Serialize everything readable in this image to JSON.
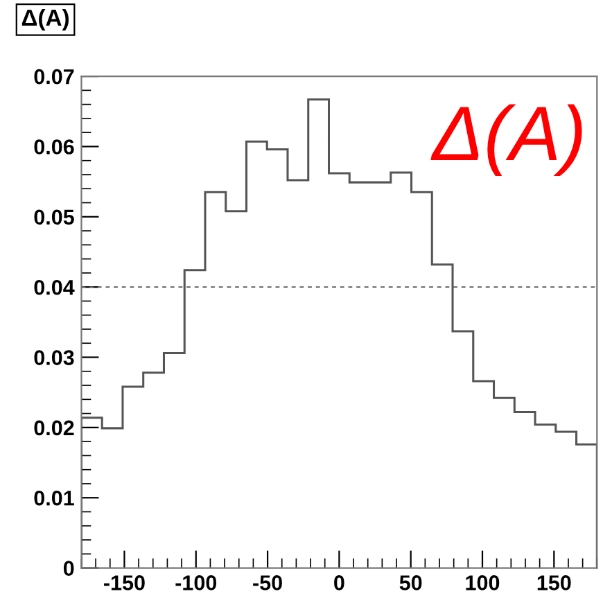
{
  "chart_data": {
    "type": "histogram",
    "title": "Δ(A)",
    "bins": [
      -180,
      -165.6,
      -151.2,
      -136.8,
      -122.4,
      -108,
      -93.6,
      -79.2,
      -64.8,
      -50.4,
      -36,
      -21.6,
      -7.2,
      7.2,
      21.6,
      36,
      50.4,
      64.8,
      79.2,
      93.6,
      108,
      122.4,
      136.8,
      151.2,
      165.6,
      180
    ],
    "values": [
      0.0214,
      0.0199,
      0.0258,
      0.0278,
      0.0306,
      0.0424,
      0.0535,
      0.0508,
      0.0607,
      0.0596,
      0.0552,
      0.0667,
      0.0562,
      0.0549,
      0.0549,
      0.0563,
      0.0535,
      0.0432,
      0.0337,
      0.0266,
      0.0242,
      0.0222,
      0.0204,
      0.0194,
      0.0176
    ],
    "color": "#555555",
    "xlim": [
      -180,
      180
    ],
    "ylim": [
      0,
      0.07
    ],
    "xticks": [
      -150,
      -100,
      -50,
      0,
      50,
      100,
      150
    ],
    "yticks": [
      0,
      0.01,
      0.02,
      0.03,
      0.04,
      0.05,
      0.06,
      0.07
    ],
    "ref_lines": [
      {
        "axis": "y",
        "value": 0.04,
        "line_style": "dashed",
        "color": "#555555"
      }
    ],
    "annotations": [
      "Δ(A)"
    ],
    "grid": false,
    "legend": false
  }
}
